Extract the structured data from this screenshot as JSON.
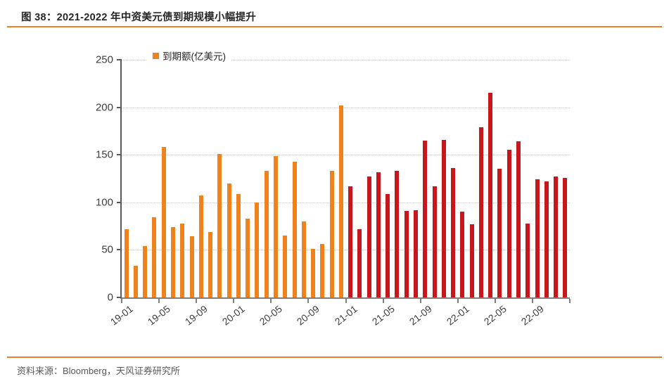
{
  "header": {
    "title": "图 38：2021-2022 年中资美元债到期规模小幅提升"
  },
  "footer": {
    "source": "资料来源：Bloomberg，天风证券研究所"
  },
  "theme": {
    "rule_color": "#ED7D31",
    "title_color": "#262626",
    "source_color": "#595959",
    "axis_label_color": "#3F3F3F",
    "gridline_color": "#C9C9C9",
    "y_axis_color": "#595959",
    "x_axis_color": "#7F7F7F",
    "background": "#FFFFFF"
  },
  "chart_data": {
    "type": "bar",
    "title": "",
    "xlabel": "",
    "ylabel": "",
    "legend": {
      "label": "到期额(亿美元)",
      "color": "#F0821E",
      "position": "top-left-inside"
    },
    "ylim": [
      0,
      250
    ],
    "y_ticks": [
      0,
      50,
      100,
      150,
      200,
      250
    ],
    "grid": "horizontal-dotted",
    "categories": [
      "19-01",
      "19-02",
      "19-03",
      "19-04",
      "19-05",
      "19-06",
      "19-07",
      "19-08",
      "19-09",
      "19-10",
      "19-11",
      "19-12",
      "20-01",
      "20-02",
      "20-03",
      "20-04",
      "20-05",
      "20-06",
      "20-07",
      "20-08",
      "20-09",
      "20-10",
      "20-11",
      "20-12",
      "21-01",
      "21-02",
      "21-03",
      "21-04",
      "21-05",
      "21-06",
      "21-07",
      "21-08",
      "21-09",
      "21-10",
      "21-11",
      "21-12",
      "22-01",
      "22-02",
      "22-03",
      "22-04",
      "22-05",
      "22-06",
      "22-07",
      "22-08",
      "22-09",
      "22-10",
      "22-11",
      "22-12"
    ],
    "values": [
      72,
      33,
      54,
      84,
      158,
      74,
      78,
      64,
      107,
      69,
      151,
      120,
      109,
      83,
      100,
      133,
      149,
      65,
      143,
      80,
      51,
      56,
      133,
      202,
      117,
      72,
      127,
      132,
      109,
      133,
      91,
      92,
      165,
      117,
      166,
      136,
      90,
      77,
      179,
      215,
      135,
      155,
      164,
      78,
      124,
      122,
      127,
      126
    ],
    "x_tick_labels": [
      "19-01",
      "19-05",
      "19-09",
      "20-01",
      "20-05",
      "20-09",
      "21-01",
      "21-05",
      "21-09",
      "22-01",
      "22-05",
      "22-09"
    ],
    "x_tick_interval": 4,
    "series_color_orange": "#F0821E",
    "series_color_red": "#C9151C",
    "red_start_category": "21-01"
  }
}
